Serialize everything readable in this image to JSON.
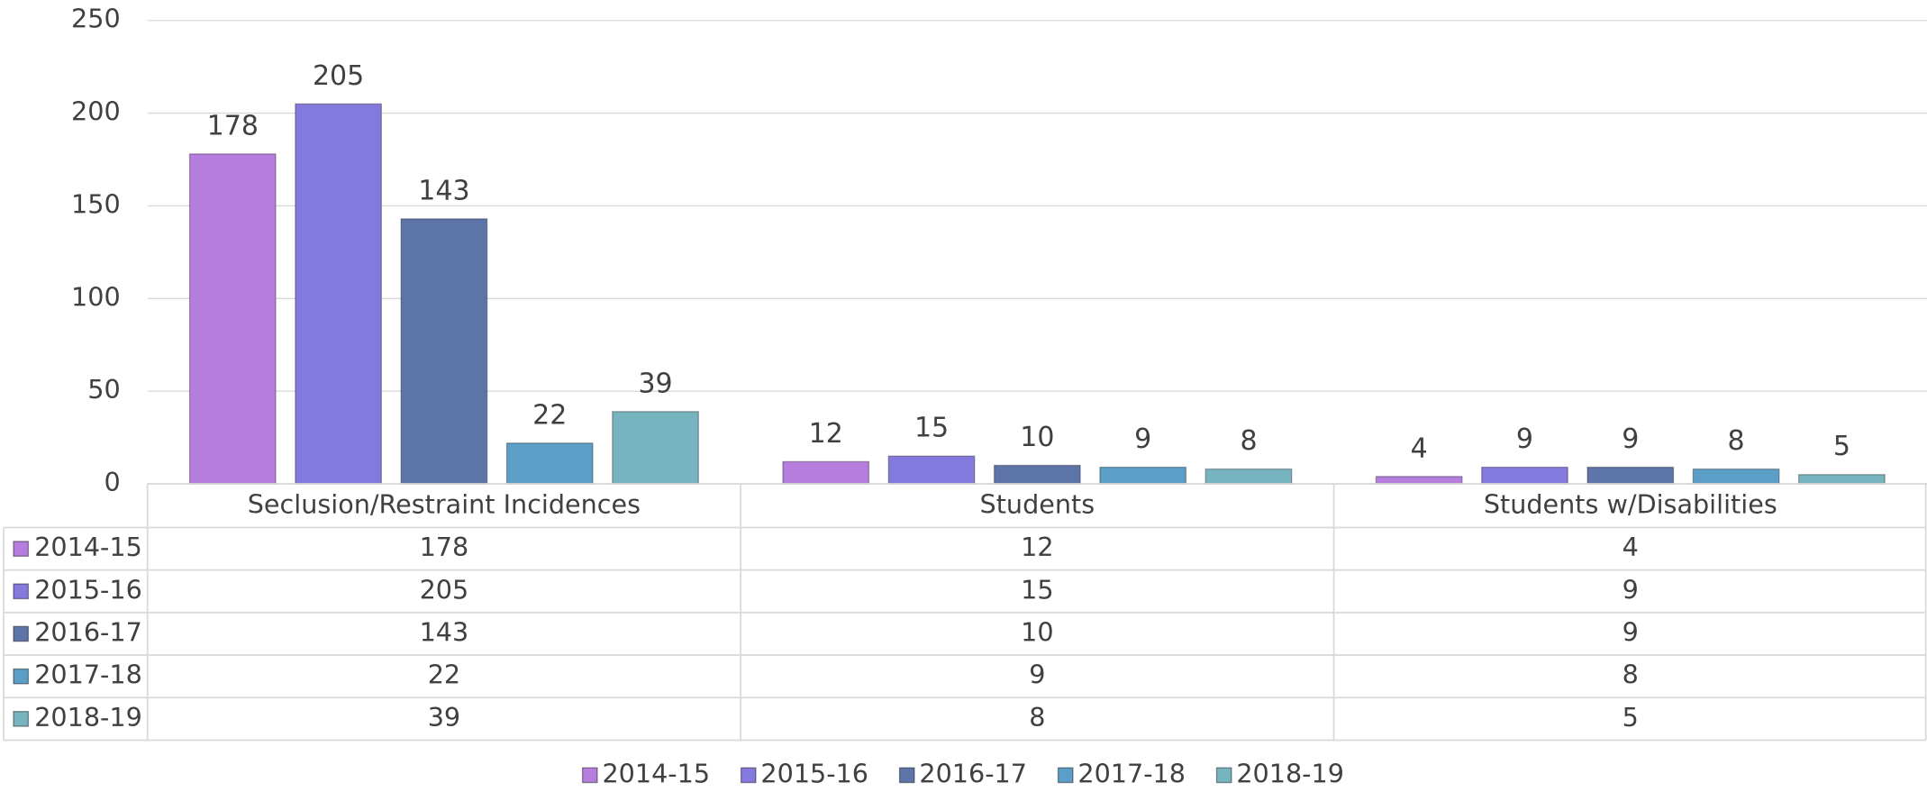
{
  "chart_data": {
    "type": "bar",
    "categories": [
      "Seclusion/Restraint Incidences",
      "Students",
      "Students w/Disabilities"
    ],
    "series": [
      {
        "name": "2014-15",
        "color": "#b57ddd",
        "values": [
          178,
          12,
          4
        ]
      },
      {
        "name": "2015-16",
        "color": "#8479dd",
        "values": [
          205,
          15,
          9
        ]
      },
      {
        "name": "2016-17",
        "color": "#5d74a8",
        "values": [
          143,
          10,
          9
        ]
      },
      {
        "name": "2017-18",
        "color": "#5b9ec6",
        "values": [
          22,
          9,
          8
        ]
      },
      {
        "name": "2018-19",
        "color": "#78b4c0",
        "values": [
          39,
          8,
          5
        ]
      }
    ],
    "ylim": [
      0,
      250
    ],
    "yticks": [
      0,
      50,
      100,
      150,
      200,
      250
    ],
    "grid": true,
    "legend": "bottom",
    "data_table": true
  }
}
